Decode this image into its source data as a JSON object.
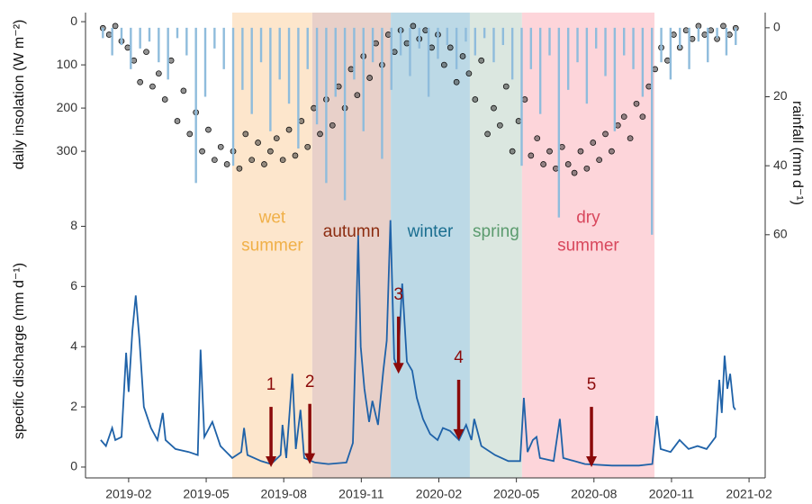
{
  "chart_data": [
    {
      "type": "scatter",
      "ylabel": "daily insolation (W m⁻²)",
      "color": "#3a3a3a",
      "xlim": [
        2018.944,
        2021.135
      ],
      "ylim": [
        1056,
        -21
      ],
      "yticks": [
        0,
        100,
        200,
        300
      ],
      "x": [
        2019.0,
        2019.02,
        2019.04,
        2019.06,
        2019.08,
        2019.1,
        2019.12,
        2019.14,
        2019.16,
        2019.18,
        2019.2,
        2019.22,
        2019.24,
        2019.26,
        2019.28,
        2019.3,
        2019.32,
        2019.34,
        2019.36,
        2019.38,
        2019.4,
        2019.42,
        2019.44,
        2019.46,
        2019.48,
        2019.5,
        2019.52,
        2019.54,
        2019.56,
        2019.58,
        2019.6,
        2019.62,
        2019.64,
        2019.66,
        2019.68,
        2019.7,
        2019.72,
        2019.74,
        2019.76,
        2019.78,
        2019.8,
        2019.82,
        2019.84,
        2019.86,
        2019.88,
        2019.9,
        2019.92,
        2019.94,
        2019.96,
        2019.98,
        2020.0,
        2020.02,
        2020.04,
        2020.06,
        2020.08,
        2020.1,
        2020.12,
        2020.14,
        2020.16,
        2020.18,
        2020.2,
        2020.22,
        2020.24,
        2020.26,
        2020.28,
        2020.3,
        2020.32,
        2020.34,
        2020.36,
        2020.38,
        2020.4,
        2020.42,
        2020.44,
        2020.46,
        2020.48,
        2020.5,
        2020.52,
        2020.54,
        2020.56,
        2020.58,
        2020.6,
        2020.62,
        2020.64,
        2020.66,
        2020.68,
        2020.7,
        2020.72,
        2020.74,
        2020.76,
        2020.78,
        2020.8,
        2020.82,
        2020.84,
        2020.86,
        2020.88,
        2020.9,
        2020.92,
        2020.94,
        2020.96,
        2020.98,
        2021.0,
        2021.02,
        2021.04
      ],
      "values": [
        15,
        30,
        10,
        45,
        60,
        90,
        140,
        70,
        150,
        120,
        180,
        90,
        230,
        160,
        260,
        210,
        300,
        250,
        320,
        290,
        330,
        300,
        340,
        260,
        320,
        280,
        330,
        300,
        270,
        320,
        250,
        310,
        230,
        290,
        200,
        260,
        180,
        240,
        150,
        200,
        110,
        170,
        80,
        130,
        50,
        100,
        30,
        70,
        20,
        50,
        10,
        40,
        20,
        60,
        30,
        100,
        60,
        140,
        80,
        120,
        180,
        90,
        260,
        200,
        240,
        150,
        300,
        230,
        180,
        310,
        270,
        330,
        300,
        340,
        290,
        330,
        350,
        300,
        340,
        280,
        320,
        260,
        300,
        240,
        220,
        270,
        190,
        220,
        150,
        110,
        60,
        90,
        30,
        60,
        20,
        40,
        10,
        30,
        20,
        40,
        10,
        30,
        15
      ]
    },
    {
      "type": "bar",
      "ylabel": "rainfall (mm d⁻¹)",
      "color": "#8fbcdc",
      "xlim": [
        2018.944,
        2021.135
      ],
      "y2lim": [
        130.5,
        -4.4
      ],
      "y2ticks": [
        0,
        20,
        40,
        60
      ],
      "x": [
        2019.0,
        2019.03,
        2019.06,
        2019.09,
        2019.12,
        2019.15,
        2019.18,
        2019.21,
        2019.24,
        2019.27,
        2019.3,
        2019.33,
        2019.36,
        2019.39,
        2019.42,
        2019.45,
        2019.48,
        2019.51,
        2019.54,
        2019.57,
        2019.6,
        2019.63,
        2019.66,
        2019.69,
        2019.72,
        2019.75,
        2019.78,
        2019.81,
        2019.84,
        2019.87,
        2019.9,
        2019.93,
        2019.96,
        2019.99,
        2020.02,
        2020.05,
        2020.08,
        2020.11,
        2020.14,
        2020.17,
        2020.2,
        2020.23,
        2020.26,
        2020.29,
        2020.32,
        2020.35,
        2020.38,
        2020.41,
        2020.44,
        2020.47,
        2020.5,
        2020.53,
        2020.56,
        2020.59,
        2020.62,
        2020.65,
        2020.68,
        2020.71,
        2020.74,
        2020.77,
        2020.8,
        2020.83,
        2020.86,
        2020.89,
        2020.92,
        2020.95,
        2020.98,
        2021.01,
        2021.04
      ],
      "values": [
        3,
        8,
        5,
        12,
        6,
        4,
        10,
        15,
        3,
        8,
        45,
        20,
        6,
        12,
        40,
        18,
        25,
        10,
        30,
        15,
        22,
        35,
        12,
        28,
        45,
        20,
        50,
        15,
        30,
        10,
        38,
        18,
        8,
        14,
        6,
        20,
        9,
        5,
        12,
        4,
        8,
        3,
        10,
        5,
        15,
        40,
        12,
        25,
        8,
        55,
        18,
        10,
        22,
        6,
        14,
        30,
        8,
        12,
        20,
        60,
        10,
        15,
        6,
        12,
        4,
        10,
        3,
        8,
        5
      ]
    },
    {
      "type": "line",
      "ylabel": "specific discharge (mm d⁻¹)",
      "color": "#1f62a8",
      "xlim": [
        2018.944,
        2021.135
      ],
      "ylim": [
        -0.36,
        15.1
      ],
      "yticks": [
        0,
        2,
        4,
        6,
        8
      ],
      "xticks": [
        {
          "value": 2019.083,
          "label": "2019-02"
        },
        {
          "value": 2019.333,
          "label": "2019-05"
        },
        {
          "value": 2019.583,
          "label": "2019-08"
        },
        {
          "value": 2019.833,
          "label": "2019-11"
        },
        {
          "value": 2020.083,
          "label": "2020-02"
        },
        {
          "value": 2020.333,
          "label": "2020-05"
        },
        {
          "value": 2020.583,
          "label": "2020-08"
        },
        {
          "value": 2020.833,
          "label": "2020-11"
        },
        {
          "value": 2021.083,
          "label": "2021-02"
        }
      ],
      "x": [
        2018.993,
        2019.01,
        2019.03,
        2019.04,
        2019.06,
        2019.075,
        2019.083,
        2019.095,
        2019.106,
        2019.118,
        2019.132,
        2019.155,
        2019.176,
        2019.193,
        2019.202,
        2019.234,
        2019.277,
        2019.306,
        2019.315,
        2019.327,
        2019.353,
        2019.379,
        2019.417,
        2019.446,
        2019.455,
        2019.466,
        2019.51,
        2019.542,
        2019.573,
        2019.579,
        2019.591,
        2019.611,
        2019.622,
        2019.637,
        2019.649,
        2019.684,
        2019.727,
        2019.785,
        2019.806,
        2019.814,
        2019.823,
        2019.831,
        2019.843,
        2019.858,
        2019.869,
        2019.887,
        2019.904,
        2019.915,
        2019.927,
        2019.939,
        2019.95,
        2019.965,
        2019.98,
        2019.997,
        2020.012,
        2020.032,
        2020.055,
        2020.079,
        2020.096,
        2020.119,
        2020.148,
        2020.171,
        2020.188,
        2020.197,
        2020.22,
        2020.264,
        2020.307,
        2020.345,
        2020.357,
        2020.369,
        2020.386,
        2020.398,
        2020.409,
        2020.453,
        2020.473,
        2020.484,
        2020.554,
        2020.641,
        2020.728,
        2020.771,
        2020.786,
        2020.798,
        2020.83,
        2020.859,
        2020.888,
        2020.917,
        2020.946,
        2020.975,
        2020.987,
        2020.995,
        2021.004,
        2021.013,
        2021.022,
        2021.033,
        2021.039
      ],
      "values": [
        0.9,
        0.7,
        1.3,
        0.9,
        1.0,
        3.8,
        2.5,
        4.5,
        5.7,
        4.2,
        2.0,
        1.3,
        0.9,
        1.8,
        0.9,
        0.6,
        0.5,
        0.4,
        3.9,
        1.0,
        1.5,
        0.7,
        0.3,
        0.5,
        1.3,
        0.4,
        0.2,
        0.1,
        0.4,
        1.4,
        0.3,
        3.1,
        0.6,
        1.9,
        0.3,
        0.15,
        0.1,
        0.15,
        0.8,
        3.8,
        7.7,
        4.0,
        2.6,
        1.5,
        2.2,
        1.4,
        3.2,
        4.2,
        8.2,
        3.6,
        3.3,
        6.1,
        3.5,
        3.2,
        2.3,
        1.6,
        1.1,
        0.9,
        1.3,
        1.2,
        0.9,
        1.4,
        0.9,
        1.6,
        0.7,
        0.4,
        0.2,
        0.2,
        2.3,
        0.5,
        0.9,
        1.0,
        0.3,
        0.2,
        1.6,
        0.3,
        0.1,
        0.05,
        0.05,
        0.1,
        1.7,
        0.6,
        0.5,
        0.9,
        0.6,
        0.7,
        0.6,
        1.0,
        2.9,
        1.8,
        3.7,
        2.6,
        3.1,
        2.0,
        1.9
      ],
      "seasons": [
        {
          "label": [
            "wet",
            "summer"
          ],
          "start": 2019.417,
          "end": 2019.675,
          "fill": "#fde6cc",
          "color": "#f0b048"
        },
        {
          "label": [
            "autumn"
          ],
          "start": 2019.675,
          "end": 2019.928,
          "fill": "#e8d0c9",
          "color": "#8c2c10"
        },
        {
          "label": [
            "winter"
          ],
          "start": 2019.928,
          "end": 2020.183,
          "fill": "#bcd9e6",
          "color": "#1a6e90"
        },
        {
          "label": [
            "spring"
          ],
          "start": 2020.183,
          "end": 2020.351,
          "fill": "#dbe7e0",
          "color": "#5b9b6e"
        },
        {
          "label": [
            "dry",
            "summer"
          ],
          "start": 2020.351,
          "end": 2020.778,
          "fill": "#fdd5da",
          "color": "#d8475c"
        }
      ],
      "annotations": [
        {
          "label": "1",
          "x": 2019.542,
          "y_start": 2.0,
          "y_end": 0.0,
          "color": "#8b0a0a"
        },
        {
          "label": "2",
          "x": 2019.667,
          "y_start": 2.1,
          "y_end": 0.1,
          "color": "#8b0a0a"
        },
        {
          "label": "3",
          "x": 2019.953,
          "y_start": 5.0,
          "y_end": 3.1,
          "color": "#8b0a0a"
        },
        {
          "label": "4",
          "x": 2020.147,
          "y_start": 2.9,
          "y_end": 0.9,
          "color": "#8b0a0a"
        },
        {
          "label": "5",
          "x": 2020.575,
          "y_start": 2.0,
          "y_end": 0.0,
          "color": "#8b0a0a"
        }
      ]
    }
  ]
}
